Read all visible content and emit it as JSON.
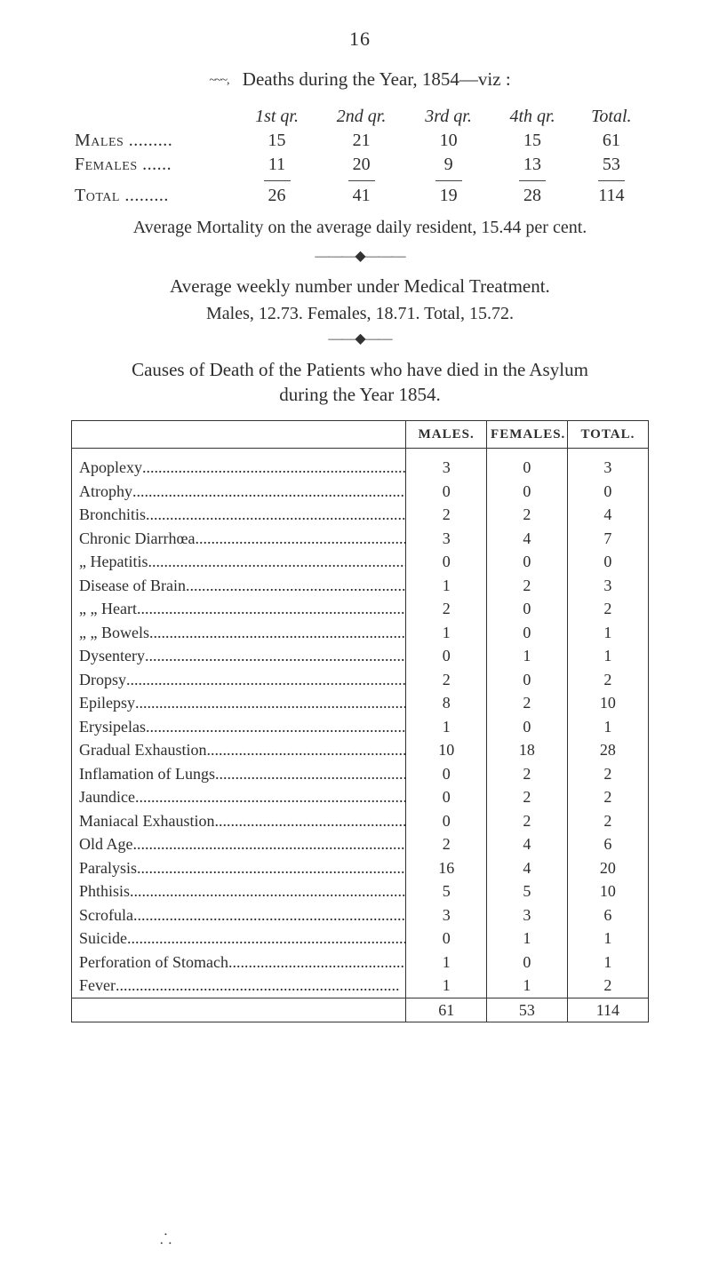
{
  "page_number": "16",
  "heading_deaths": "Deaths during the Year, 1854—viz :",
  "squiggle": "~~~,",
  "deaths_table": {
    "headers": [
      "1st qr.",
      "2nd qr.",
      "3rd qr.",
      "4th qr.",
      "Total."
    ],
    "rows": [
      {
        "label": "Males .........",
        "vals": [
          "15",
          "21",
          "10",
          "15",
          "61"
        ]
      },
      {
        "label": "Females ......",
        "vals": [
          "11",
          "20",
          "9",
          "13",
          "53"
        ]
      }
    ],
    "total": {
      "label": "Total .........",
      "vals": [
        "26",
        "41",
        "19",
        "28",
        "114"
      ]
    }
  },
  "avg_mortality": "Average Mortality on the average daily resident, 15.44 per cent.",
  "arrow": "———◆———",
  "weekly_heading": "Average weekly number under Medical Treatment.",
  "weekly_line": "Males, 12.73.   Females, 18.71.   Total, 15.72.",
  "arrow2": "——◆——",
  "causes_heading_l1": "Causes of Death of the Patients who have died in the Asylum",
  "causes_heading_l2": "during the Year 1854.",
  "causes_table": {
    "headers": [
      "",
      "MALES.",
      "FEMALES.",
      "TOTAL."
    ],
    "dot_fill": "  .......................................................................",
    "rows": [
      {
        "label": "Apoplexy",
        "m": "3",
        "f": "0",
        "t": "3"
      },
      {
        "label": "Atrophy",
        "m": "0",
        "f": "0",
        "t": "0"
      },
      {
        "label": "Bronchitis",
        "m": "2",
        "f": "2",
        "t": "4"
      },
      {
        "label": "Chronic Diarrhœa",
        "m": "3",
        "f": "4",
        "t": "7"
      },
      {
        "label": "     „        Hepatitis",
        "m": "0",
        "f": "0",
        "t": "0"
      },
      {
        "label": "Disease of Brain",
        "m": "1",
        "f": "2",
        "t": "3"
      },
      {
        "label": "     „       „  Heart",
        "m": "2",
        "f": "0",
        "t": "2"
      },
      {
        "label": "     „       „  Bowels",
        "m": "1",
        "f": "0",
        "t": "1"
      },
      {
        "label": "Dysentery",
        "m": "0",
        "f": "1",
        "t": "1"
      },
      {
        "label": "Dropsy",
        "m": "2",
        "f": "0",
        "t": "2"
      },
      {
        "label": "Epilepsy",
        "m": "8",
        "f": "2",
        "t": "10"
      },
      {
        "label": "Erysipelas",
        "m": "1",
        "f": "0",
        "t": "1"
      },
      {
        "label": "Gradual Exhaustion",
        "m": "10",
        "f": "18",
        "t": "28"
      },
      {
        "label": "Inflamation of Lungs",
        "m": "0",
        "f": "2",
        "t": "2"
      },
      {
        "label": "Jaundice",
        "m": "0",
        "f": "2",
        "t": "2"
      },
      {
        "label": "Maniacal Exhaustion",
        "m": "0",
        "f": "2",
        "t": "2"
      },
      {
        "label": "Old Age",
        "m": "2",
        "f": "4",
        "t": "6"
      },
      {
        "label": "Paralysis",
        "m": "16",
        "f": "4",
        "t": "20"
      },
      {
        "label": "Phthisis",
        "m": "5",
        "f": "5",
        "t": "10"
      },
      {
        "label": "Scrofula",
        "m": "3",
        "f": "3",
        "t": "6"
      },
      {
        "label": "Suicide",
        "m": "0",
        "f": "1",
        "t": "1"
      },
      {
        "label": "Perforation of Stomach",
        "m": "1",
        "f": "0",
        "t": "1"
      },
      {
        "label": "Fever",
        "m": "1",
        "f": "1",
        "t": "2"
      }
    ],
    "totals": {
      "m": "61",
      "f": "53",
      "t": "114"
    }
  },
  "foot_mark": "⸫",
  "colors": {
    "text": "#2d2d2d",
    "border": "#333333",
    "background": "#ffffff"
  }
}
